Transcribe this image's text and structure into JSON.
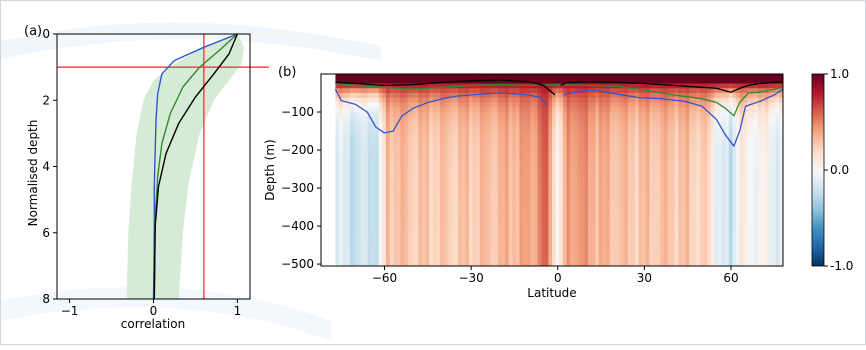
{
  "figure": {
    "background_accent": "#e6eef7"
  },
  "chart_data": [
    {
      "type": "line",
      "panel_label": "(a)",
      "xlabel": "correlation",
      "ylabel": "Normalised depth",
      "xlim": [
        -1.15,
        1.15
      ],
      "ylim": [
        8,
        0
      ],
      "x_ticks": [
        -1,
        0,
        1
      ],
      "y_ticks": [
        0,
        2,
        4,
        6,
        8
      ],
      "x_tick_labels": [
        "−1",
        "0",
        "1"
      ],
      "y_tick_labels": [
        "0",
        "2",
        "4",
        "6",
        "8"
      ],
      "reference_lines": {
        "vertical_x": 0.6,
        "horizontal_y": 1.0,
        "color": "#ff2020"
      },
      "band": {
        "color": "#cfe8cf",
        "lower": [
          [
            1.0,
            0
          ],
          [
            0.7,
            0.3
          ],
          [
            0.45,
            0.6
          ],
          [
            0.2,
            1.0
          ],
          [
            0.0,
            1.4
          ],
          [
            -0.12,
            2.0
          ],
          [
            -0.2,
            3.0
          ],
          [
            -0.26,
            4.5
          ],
          [
            -0.3,
            6.0
          ],
          [
            -0.32,
            8.0
          ]
        ],
        "upper": [
          [
            1.0,
            0
          ],
          [
            1.08,
            0.4
          ],
          [
            1.05,
            0.9
          ],
          [
            0.9,
            1.4
          ],
          [
            0.72,
            2.0
          ],
          [
            0.55,
            3.0
          ],
          [
            0.42,
            4.5
          ],
          [
            0.35,
            6.0
          ],
          [
            0.3,
            8.0
          ]
        ]
      },
      "series": [
        {
          "color": "#3355cc",
          "points": [
            [
              1.0,
              0
            ],
            [
              0.6,
              0.4
            ],
            [
              0.25,
              0.8
            ],
            [
              0.1,
              1.2
            ],
            [
              0.05,
              1.8
            ],
            [
              0.03,
              2.6
            ],
            [
              0.02,
              3.5
            ],
            [
              0.01,
              4.6
            ],
            [
              0.01,
              6.0
            ],
            [
              0.0,
              8.0
            ]
          ]
        },
        {
          "color": "#2e8b2e",
          "points": [
            [
              1.0,
              0
            ],
            [
              0.78,
              0.5
            ],
            [
              0.55,
              1.0
            ],
            [
              0.35,
              1.6
            ],
            [
              0.2,
              2.4
            ],
            [
              0.1,
              3.3
            ],
            [
              0.05,
              4.3
            ],
            [
              0.02,
              5.5
            ],
            [
              0.01,
              8.0
            ]
          ]
        },
        {
          "color": "#000000",
          "points": [
            [
              1.0,
              0
            ],
            [
              0.9,
              0.6
            ],
            [
              0.72,
              1.2
            ],
            [
              0.5,
              1.9
            ],
            [
              0.3,
              2.7
            ],
            [
              0.15,
              3.6
            ],
            [
              0.06,
              4.6
            ],
            [
              0.02,
              5.8
            ],
            [
              0.01,
              8.0
            ]
          ]
        }
      ]
    },
    {
      "type": "heatmap",
      "panel_label": "(b)",
      "xlabel": "Latitude",
      "ylabel": "Depth (m)",
      "xlim": [
        -82,
        78
      ],
      "ylim": [
        -505,
        0
      ],
      "x_ticks": [
        -60,
        -30,
        0,
        30,
        60
      ],
      "y_ticks": [
        -100,
        -200,
        -300,
        -400,
        -500
      ],
      "x_tick_labels": [
        "−60",
        "−30",
        "0",
        "30",
        "60"
      ],
      "y_tick_labels": [
        "−100",
        "−200",
        "−300",
        "−400",
        "−500"
      ],
      "data_lat_range": [
        -77,
        78
      ],
      "colorbar": {
        "range": [
          -1,
          1
        ],
        "tick_values": [
          1,
          0,
          -1
        ],
        "tick_labels": [
          "1.0",
          "0.0",
          "-1.0"
        ],
        "colors": [
          "#053061",
          "#2166ac",
          "#4393c3",
          "#92c5de",
          "#d1e5f0",
          "#f7f7f7",
          "#fddbc7",
          "#f4a582",
          "#d6604d",
          "#b2182b",
          "#67001f"
        ]
      },
      "field": {
        "surface_value": 1.0,
        "surface_depth": -25,
        "column_profile": [
          [
            -77,
            -0.12
          ],
          [
            -70,
            -0.25
          ],
          [
            -62,
            -0.22
          ],
          [
            -59,
            0.35
          ],
          [
            -50,
            0.3
          ],
          [
            -40,
            0.28
          ],
          [
            -32,
            0.3
          ],
          [
            -25,
            0.32
          ],
          [
            -15,
            0.38
          ],
          [
            -8,
            0.45
          ],
          [
            -5,
            0.62
          ],
          [
            -3,
            0.55
          ],
          [
            -1,
            0.15
          ],
          [
            1,
            0.05
          ],
          [
            3,
            0.45
          ],
          [
            6,
            0.5
          ],
          [
            10,
            0.45
          ],
          [
            15,
            0.38
          ],
          [
            25,
            0.3
          ],
          [
            35,
            0.32
          ],
          [
            45,
            0.3
          ],
          [
            52,
            0.22
          ],
          [
            56,
            -0.12
          ],
          [
            60,
            -0.3
          ],
          [
            63,
            0.15
          ],
          [
            66,
            -0.05
          ],
          [
            70,
            0.05
          ],
          [
            75,
            -0.1
          ],
          [
            78,
            -0.1
          ]
        ]
      },
      "series": [
        {
          "color": "#3355cc",
          "points": [
            [
              -77,
              -40
            ],
            [
              -75,
              -70
            ],
            [
              -70,
              -80
            ],
            [
              -66,
              -100
            ],
            [
              -63,
              -140
            ],
            [
              -60,
              -155
            ],
            [
              -57,
              -150
            ],
            [
              -54,
              -110
            ],
            [
              -50,
              -90
            ],
            [
              -45,
              -75
            ],
            [
              -40,
              -65
            ],
            [
              -35,
              -58
            ],
            [
              -30,
              -55
            ],
            [
              -25,
              -52
            ],
            [
              -20,
              -50
            ],
            [
              -15,
              -52
            ],
            [
              -10,
              -55
            ],
            [
              -6,
              -62
            ],
            [
              -4,
              -80
            ],
            null,
            [
              2,
              -55
            ],
            [
              6,
              -48
            ],
            [
              12,
              -42
            ],
            [
              20,
              -52
            ],
            [
              28,
              -62
            ],
            [
              36,
              -65
            ],
            [
              44,
              -72
            ],
            [
              50,
              -85
            ],
            [
              55,
              -120
            ],
            [
              58,
              -160
            ],
            [
              61,
              -190
            ],
            [
              63,
              -150
            ],
            [
              65,
              -85
            ],
            [
              70,
              -72
            ],
            [
              75,
              -55
            ],
            [
              78,
              -40
            ]
          ]
        },
        {
          "color": "#2e8b2e",
          "points": [
            [
              -77,
              -25
            ],
            [
              -70,
              -30
            ],
            [
              -60,
              -35
            ],
            [
              -50,
              -40
            ],
            [
              -40,
              -35
            ],
            [
              -30,
              -30
            ],
            [
              -20,
              -28
            ],
            [
              -10,
              -30
            ],
            [
              0,
              -28
            ],
            [
              10,
              -30
            ],
            [
              20,
              -32
            ],
            [
              30,
              -42
            ],
            [
              40,
              -55
            ],
            [
              50,
              -65
            ],
            [
              55,
              -75
            ],
            [
              58,
              -90
            ],
            [
              61,
              -110
            ],
            [
              63,
              -75
            ],
            [
              66,
              -50
            ],
            [
              70,
              -48
            ],
            [
              75,
              -40
            ],
            [
              78,
              -35
            ]
          ]
        },
        {
          "color": "#000000",
          "points": [
            [
              -77,
              -22
            ],
            [
              -70,
              -25
            ],
            [
              -60,
              -30
            ],
            [
              -50,
              -28
            ],
            [
              -40,
              -22
            ],
            [
              -30,
              -18
            ],
            [
              -20,
              -16
            ],
            [
              -10,
              -20
            ],
            [
              -5,
              -30
            ],
            [
              -3,
              -42
            ],
            [
              -1,
              -55
            ],
            null,
            [
              1,
              -30
            ],
            [
              3,
              -22
            ],
            [
              10,
              -20
            ],
            [
              20,
              -22
            ],
            [
              30,
              -25
            ],
            [
              40,
              -30
            ],
            [
              50,
              -35
            ],
            [
              55,
              -38
            ],
            [
              60,
              -48
            ],
            [
              63,
              -38
            ],
            [
              66,
              -30
            ],
            [
              70,
              -25
            ],
            [
              75,
              -22
            ],
            [
              78,
              -20
            ]
          ]
        }
      ]
    }
  ]
}
